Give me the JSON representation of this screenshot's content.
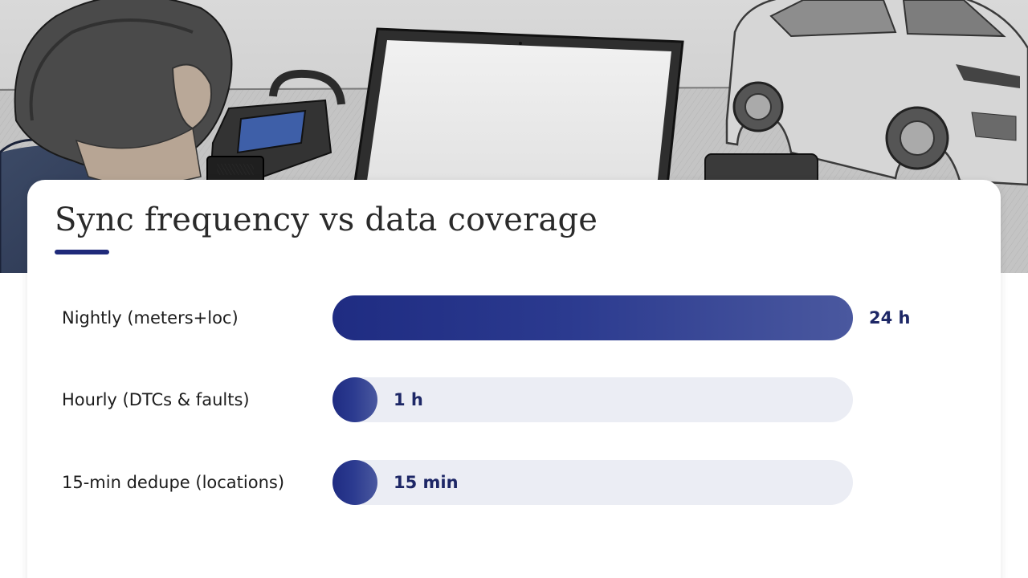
{
  "chart_data": {
    "type": "bar",
    "orientation": "horizontal",
    "title": "Sync frequency vs data coverage",
    "categories": [
      "Nightly (meters+loc)",
      "Hourly (DTCs & faults)",
      "15-min dedupe (locations)"
    ],
    "values_hours": [
      24,
      1,
      0.25
    ],
    "value_labels": [
      "24 h",
      "1 h",
      "15 min"
    ],
    "xlim": [
      0,
      24
    ],
    "grid": false,
    "legend": "none",
    "colors": {
      "bar_start": "#1f2c82",
      "bar_end": "#4a589f",
      "track": "#ebedf4",
      "value_text": "#1d2766",
      "title_underline": "#1f2a7a"
    }
  },
  "hero": {
    "scene": "pencil-sketch: person at laptop with OBD diagnostic scanner, SUV in background"
  }
}
